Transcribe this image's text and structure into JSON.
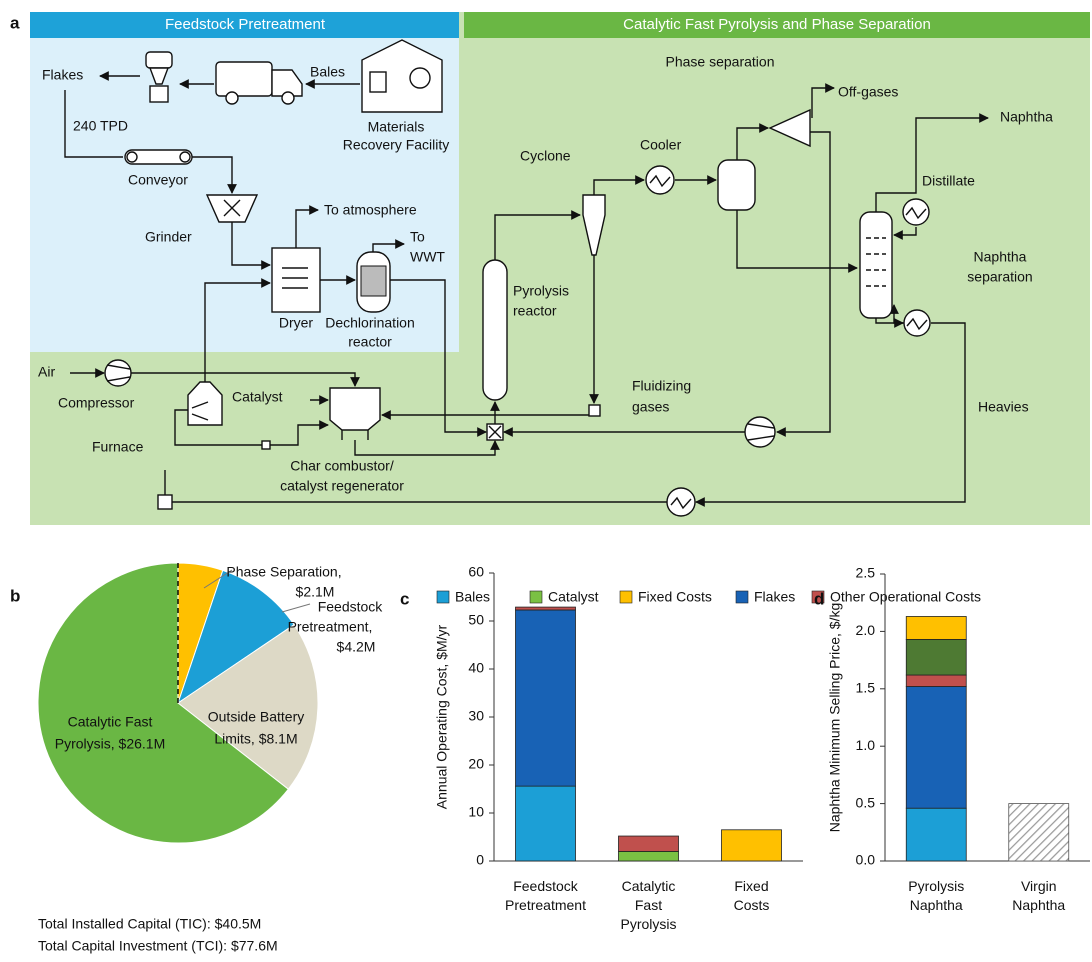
{
  "diagram": {
    "panel_label": "a",
    "sections": [
      "Feedstock Pretreatment",
      "Catalytic Fast Pyrolysis and Phase Separation"
    ],
    "labels": {
      "flakes": "Flakes",
      "bales": "Bales",
      "mrf": [
        "Materials",
        "Recovery Facility"
      ],
      "tpd": "240 TPD",
      "conveyor": "Conveyor",
      "grinder": "Grinder",
      "atmosphere": "To atmosphere",
      "wwt": [
        "To",
        "WWT"
      ],
      "dryer": "Dryer",
      "dechlorination": [
        "Dechlorination",
        "reactor"
      ],
      "phase_separation": "Phase separation",
      "off_gases": "Off-gases",
      "naphtha": "Naphtha",
      "cyclone": "Cyclone",
      "cooler": "Cooler",
      "distillate": "Distillate",
      "pyrolysis_reactor": [
        "Pyrolysis",
        "reactor"
      ],
      "naphtha_separation": [
        "Naphtha",
        "separation"
      ],
      "air": "Air",
      "compressor": "Compressor",
      "catalyst": "Catalyst",
      "furnace": "Furnace",
      "combustor": [
        "Char combustor/",
        "catalyst regenerator"
      ],
      "fluidizing": [
        "Fluidizing",
        "gases"
      ],
      "heavies": "Heavies"
    }
  },
  "chart_data": [
    {
      "type": "pie",
      "panel_label": "b",
      "values": [
        2.1,
        4.2,
        8.1,
        26.1
      ],
      "labels": [
        [
          "Phase Separation,",
          "$2.1M"
        ],
        [
          "Feedstock",
          "Pretreatment,",
          "$4.2M"
        ],
        [
          "Outside Battery",
          "Limits, $8.1M"
        ],
        [
          "Catalytic Fast",
          "Pyrolysis, $26.1M"
        ]
      ],
      "colors": [
        "#ffc000",
        "#1c9fd6",
        "#ddd9c6",
        "#6ab744"
      ],
      "notes": [
        "Total Installed Capital (TIC): $40.5M",
        "Total Capital Investment (TCI): $77.6M"
      ]
    },
    {
      "type": "stacked_bar",
      "panel_label": "c",
      "y_label": "Annual Operating Cost, $M/yr",
      "categories": [
        "Feedstock Pretreatment",
        "Catalytic Fast Pyrolysis",
        "Fixed Costs"
      ],
      "series": [
        {
          "name": "Bales",
          "color": "#1c9fd6",
          "values": [
            15.6,
            0,
            0
          ]
        },
        {
          "name": "Catalyst",
          "color": "#7ac143",
          "values": [
            0,
            2.0,
            0
          ]
        },
        {
          "name": "Fixed Costs",
          "color": "#ffc000",
          "values": [
            0,
            0,
            6.5
          ]
        },
        {
          "name": "Flakes",
          "color": "#1862b5",
          "values": [
            36.7,
            0,
            0
          ]
        },
        {
          "name": "Other Operational Costs",
          "color": "#c0504d",
          "values": [
            0.6,
            3.2,
            0
          ]
        }
      ],
      "ylim": [
        0,
        60
      ],
      "yticks": [
        0,
        10,
        20,
        30,
        40,
        50,
        60
      ],
      "legend": "top"
    },
    {
      "type": "stacked_bar",
      "panel_label": "d",
      "y_label": "Naphtha Minimum Selling Price, $/kg",
      "categories": [
        "Pyrolysis Naphtha",
        "Virgin Naphtha"
      ],
      "series": [
        {
          "color": "#1c9fd6",
          "values": [
            0.46,
            null
          ]
        },
        {
          "color": "#1862b5",
          "values": [
            1.06,
            null
          ]
        },
        {
          "color": "#c0504d",
          "values": [
            0.1,
            null
          ]
        },
        {
          "color": "#4e7a33",
          "values": [
            0.31,
            null
          ]
        },
        {
          "color": "#ffc000",
          "values": [
            0.2,
            null
          ]
        },
        {
          "color": "#bfbfbf",
          "pattern": "hatch",
          "values": [
            null,
            0.5
          ]
        }
      ],
      "ylim": [
        0,
        2.5
      ],
      "yticks": [
        {
          "value": 0,
          "label": "0.0"
        },
        0.5,
        {
          "value": 1,
          "label": "1.0"
        },
        1.5,
        {
          "value": 2,
          "label": "2.0"
        },
        2.5
      ]
    }
  ]
}
